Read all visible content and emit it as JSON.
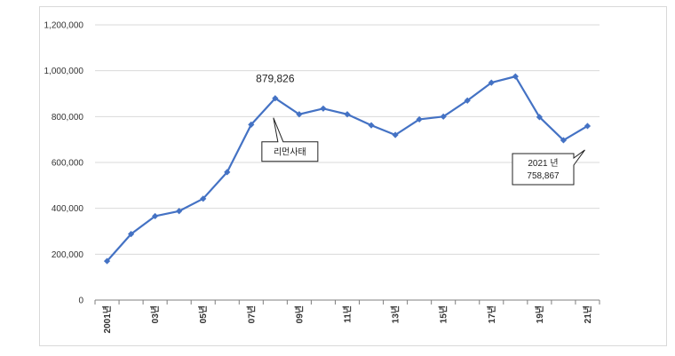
{
  "chart_data": {
    "type": "line",
    "title": "",
    "xlabel": "",
    "ylabel": "",
    "ylim": [
      0,
      1200000
    ],
    "yticks": [
      0,
      200000,
      400000,
      600000,
      800000,
      1000000,
      1200000
    ],
    "ytick_labels": [
      "0",
      "200,000",
      "400,000",
      "600,000",
      "800,000",
      "1,000,000",
      "1,200,000"
    ],
    "x": [
      2001,
      2002,
      2003,
      2004,
      2005,
      2006,
      2007,
      2008,
      2009,
      2010,
      2011,
      2012,
      2013,
      2014,
      2015,
      2016,
      2017,
      2018,
      2019,
      2020,
      2021
    ],
    "x_tick_labels": [
      {
        "x": 2001,
        "label": "2001년"
      },
      {
        "x": 2003,
        "label": "03년"
      },
      {
        "x": 2005,
        "label": "05년"
      },
      {
        "x": 2007,
        "label": "07년"
      },
      {
        "x": 2009,
        "label": "09년"
      },
      {
        "x": 2011,
        "label": "11년"
      },
      {
        "x": 2013,
        "label": "13년"
      },
      {
        "x": 2015,
        "label": "15년"
      },
      {
        "x": 2017,
        "label": "17년"
      },
      {
        "x": 2019,
        "label": "19년"
      },
      {
        "x": 2021,
        "label": "21년"
      }
    ],
    "series": [
      {
        "values": [
          170000,
          288000,
          366000,
          388000,
          442000,
          558000,
          765000,
          879826,
          810000,
          835000,
          810000,
          762000,
          720000,
          788000,
          800000,
          870000,
          948000,
          975000,
          798000,
          697000,
          758867
        ]
      }
    ],
    "grid": true,
    "legend": "none",
    "annotations": {
      "peak_value": "879,826",
      "event_label": "리먼사태",
      "last_label_line1": "2021 년",
      "last_label_line2": "758,867"
    },
    "colors": {
      "line": "#4472C4",
      "grid": "#d9d9d9",
      "axis": "#7f7f7f"
    }
  }
}
